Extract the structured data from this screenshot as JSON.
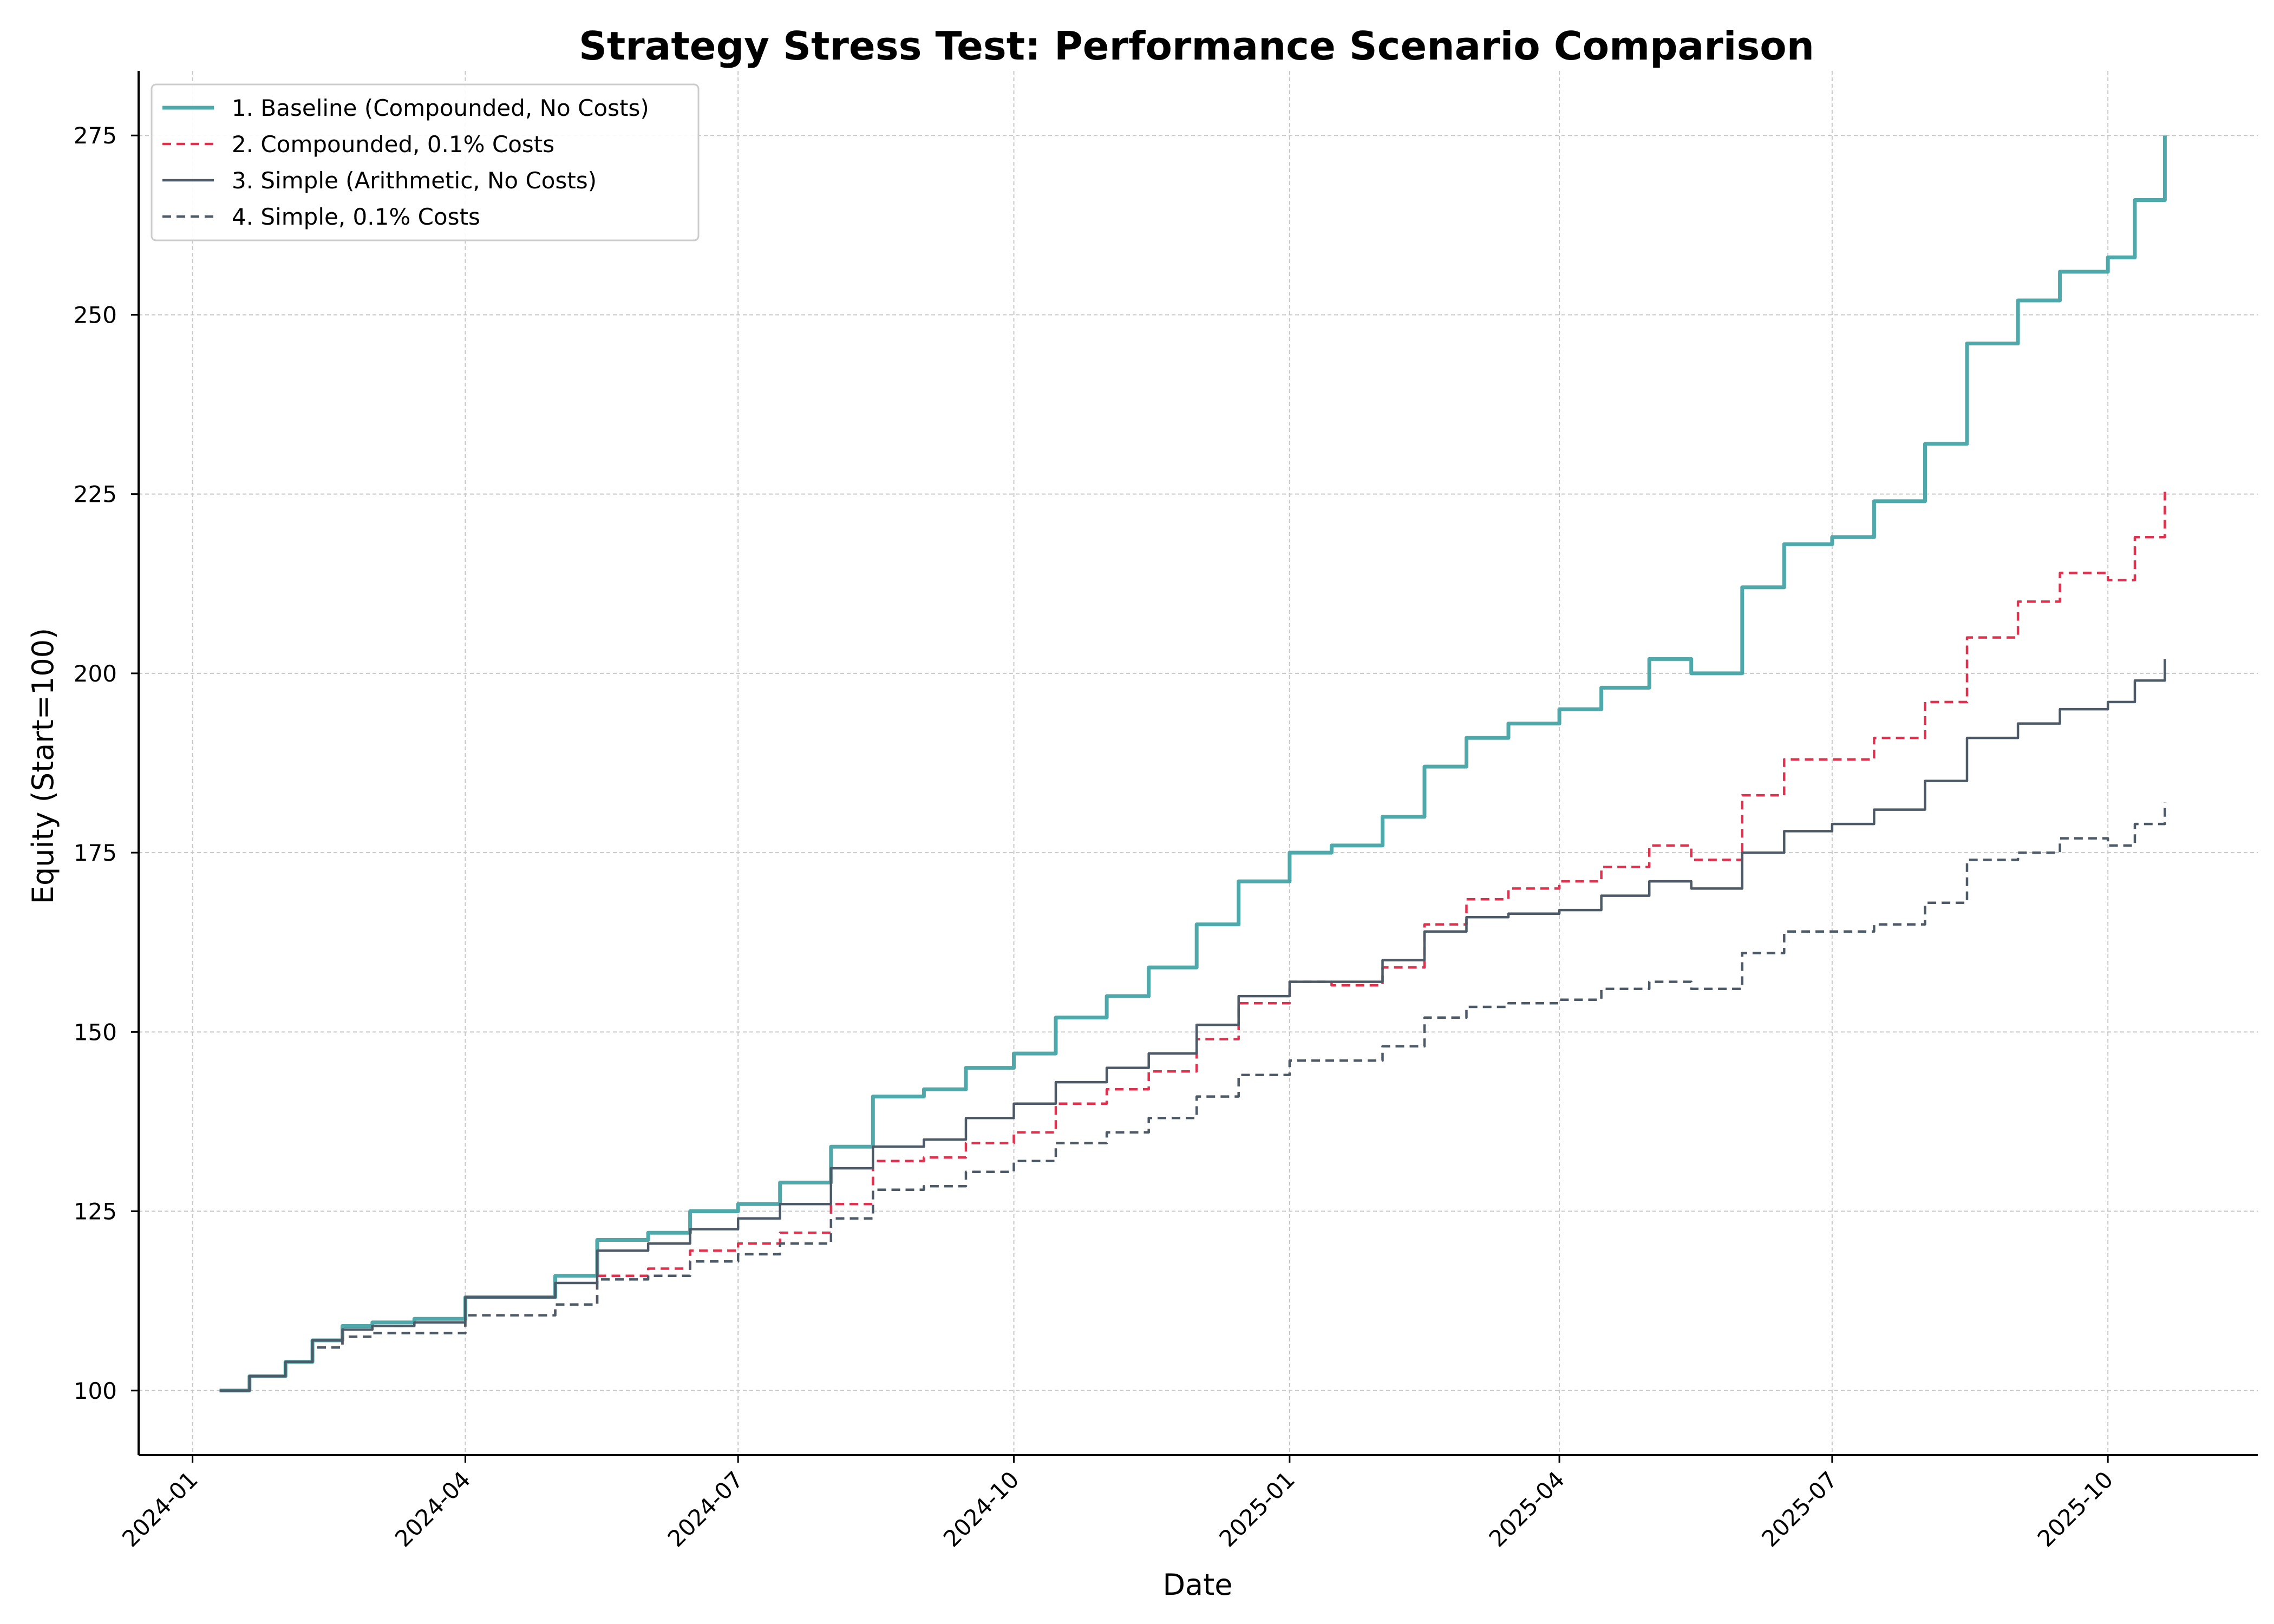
{
  "chart_data": {
    "type": "line",
    "title": "Strategy Stress Test: Performance Scenario Comparison",
    "xlabel": "Date",
    "ylabel": "Equity (Start=100)",
    "xlim": [
      "2023-12-14",
      "2025-11-20"
    ],
    "ylim": [
      91,
      284
    ],
    "grid": true,
    "legend_position": "top-left",
    "x_ticks": [
      "2024-01",
      "2024-04",
      "2024-07",
      "2024-10",
      "2025-01",
      "2025-04",
      "2025-07",
      "2025-10"
    ],
    "y_ticks": [
      100,
      125,
      150,
      175,
      200,
      225,
      250,
      275
    ],
    "x": [
      "2024-01-10",
      "2024-01-20",
      "2024-02-01",
      "2024-02-10",
      "2024-02-20",
      "2024-03-01",
      "2024-03-15",
      "2024-04-01",
      "2024-04-15",
      "2024-05-01",
      "2024-05-15",
      "2024-06-01",
      "2024-06-15",
      "2024-07-01",
      "2024-07-15",
      "2024-08-01",
      "2024-08-15",
      "2024-09-01",
      "2024-09-15",
      "2024-10-01",
      "2024-10-15",
      "2024-11-01",
      "2024-11-15",
      "2024-12-01",
      "2024-12-15",
      "2025-01-01",
      "2025-01-15",
      "2025-02-01",
      "2025-02-15",
      "2025-03-01",
      "2025-03-15",
      "2025-04-01",
      "2025-04-15",
      "2025-05-01",
      "2025-05-15",
      "2025-06-01",
      "2025-06-15",
      "2025-07-01",
      "2025-07-15",
      "2025-08-01",
      "2025-08-15",
      "2025-09-01",
      "2025-09-15",
      "2025-10-01",
      "2025-10-10",
      "2025-10-20"
    ],
    "series": [
      {
        "name": "1. Baseline (Compounded, No Costs)",
        "color": "#4fa8aa",
        "style": "solid",
        "values": [
          100,
          102,
          104,
          107,
          109,
          109.5,
          110,
          113,
          113,
          116,
          121,
          122,
          125,
          126,
          129,
          134,
          141,
          142,
          145,
          147,
          152,
          155,
          159,
          165,
          171,
          175,
          176,
          180,
          187,
          191,
          193,
          195,
          198,
          202,
          200,
          212,
          218,
          219,
          224,
          232,
          246,
          252,
          256,
          258,
          266,
          275
        ]
      },
      {
        "name": "2. Compounded, 0.1% Costs",
        "color": "#e0324e",
        "style": "dashed",
        "values": [
          100,
          102,
          104,
          106,
          107.5,
          108,
          108,
          110.5,
          110.5,
          112,
          116,
          117,
          119.5,
          120.5,
          122,
          126,
          132,
          132.5,
          134.5,
          136,
          140,
          142,
          144.5,
          149,
          154,
          157,
          156.5,
          159,
          165,
          168.5,
          170,
          171,
          173,
          176,
          174,
          183,
          188,
          188,
          191,
          196,
          205,
          210,
          214,
          213,
          219,
          226
        ]
      },
      {
        "name": "3. Simple (Arithmetic, No Costs)",
        "color": "#4d5a68",
        "style": "solid",
        "values": [
          100,
          102,
          104,
          107,
          108.5,
          109,
          109.5,
          113,
          113,
          115,
          119.5,
          120.5,
          122.5,
          124,
          126,
          131,
          134,
          135,
          138,
          140,
          143,
          145,
          147,
          151,
          155,
          157,
          157,
          160,
          164,
          166,
          166.5,
          167,
          169,
          171,
          170,
          175,
          178,
          179,
          181,
          185,
          191,
          193,
          195,
          196,
          199,
          202
        ]
      },
      {
        "name": "4. Simple, 0.1% Costs",
        "color": "#4d5a68",
        "style": "dashed",
        "values": [
          100,
          102,
          104,
          106,
          107.5,
          108,
          108,
          110.5,
          110.5,
          112,
          115.5,
          116,
          118,
          119,
          120.5,
          124,
          128,
          128.5,
          130.5,
          132,
          134.5,
          136,
          138,
          141,
          144,
          146,
          146,
          148,
          152,
          153.5,
          154,
          154.5,
          156,
          157,
          156,
          161,
          164,
          164,
          165,
          168,
          174,
          175,
          177,
          176,
          179,
          182
        ]
      }
    ]
  }
}
